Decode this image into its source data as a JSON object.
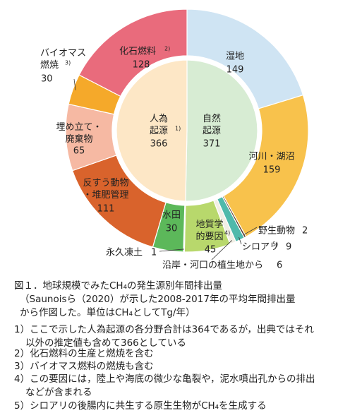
{
  "chart_data": {
    "type": "donut",
    "outer": {
      "categories": [
        "湿地",
        "河川・湖沼",
        "野生動物",
        "シロアリ",
        "沿岸・河口の植生地から",
        "地質学\n的要因",
        "永久凍土",
        "水田",
        "反すう動物\n・堆肥管理",
        "埋め立て・\n廃棄物",
        "バイオマス\n燃焼",
        "化石燃料"
      ],
      "notes": [
        null,
        null,
        null,
        "5)",
        null,
        "4)",
        null,
        null,
        null,
        null,
        "3)",
        "2)"
      ],
      "values": [
        149,
        159,
        2,
        9,
        6,
        45,
        1,
        30,
        111,
        65,
        30,
        128
      ],
      "colors": [
        "#cfe4f3",
        "#f8c24c",
        "#5a3d2e",
        "#4fb9ab",
        "#f2efe6",
        "#b8d86c",
        "#d8d8d8",
        "#5cb85a",
        "#d9632c",
        "#f6b9a3",
        "#f5a92a",
        "#e96b7c"
      ]
    },
    "inner": {
      "categories": [
        "自然\n起源",
        "人為\n起源"
      ],
      "notes": [
        null,
        "1)"
      ],
      "values": [
        371,
        366
      ],
      "colors": [
        "#d7ecd3",
        "#fde7c6"
      ]
    }
  },
  "caption": [
    "図１．地球規模でみたCH₄の発生源別年間排出量",
    "（Saunoisら（2020）が示した2008-2017年の平均年間排出量",
    "から作図した。単位はCH₄としてTg/年）"
  ],
  "footnotes": [
    "1）ここで示した人為起源の各分野合計は364であるが，出典ではそれ",
    "以外の推定値も含めて366としている",
    "2）化石燃料の生産と燃焼を含む",
    "3）バイオマス燃料の燃焼も含む",
    "4）この要因には，陸上や海底の微少な亀裂や，泥水噴出孔からの排出",
    "などが含まれる",
    "5）シロアリの後腸内に共生する原生生物がCH₄を生成する"
  ]
}
